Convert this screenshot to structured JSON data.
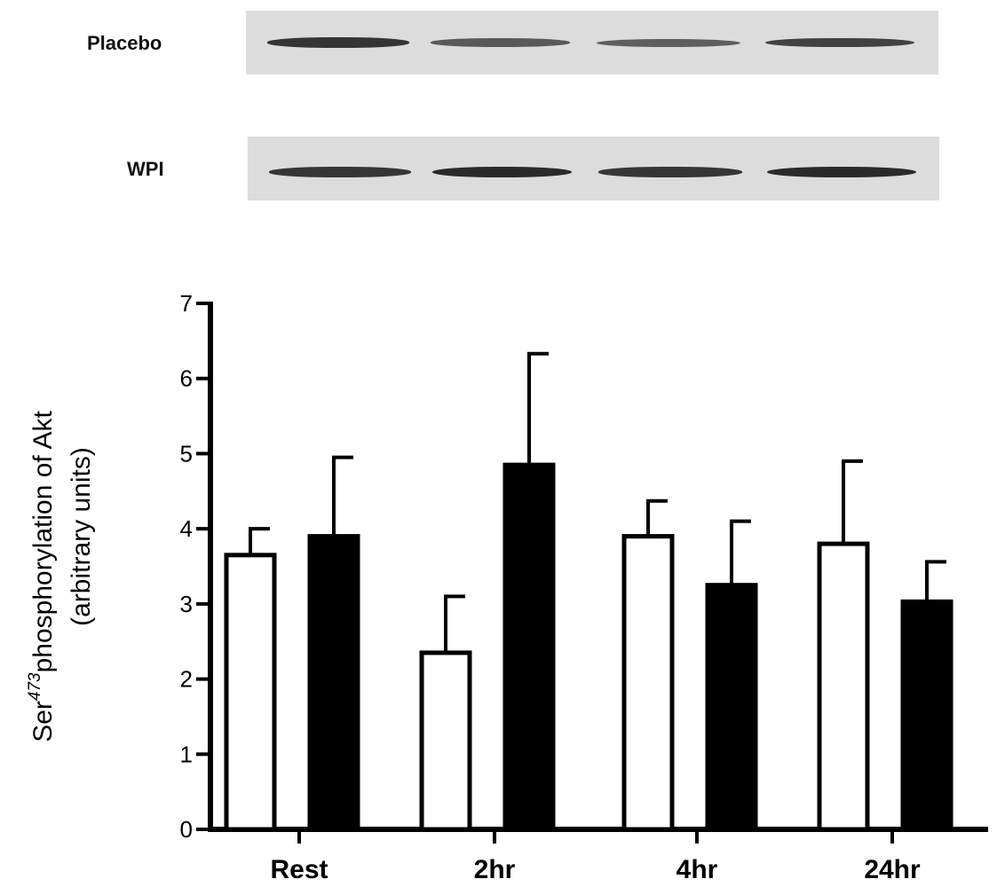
{
  "blot": {
    "rows": [
      {
        "label": "Placebo",
        "intensities": [
          0.85,
          0.55,
          0.5,
          0.75
        ]
      },
      {
        "label": "WPI",
        "intensities": [
          0.85,
          0.95,
          0.85,
          0.95
        ]
      }
    ]
  },
  "chart_data": {
    "type": "bar",
    "categories": [
      "Rest",
      "2hr",
      "4hr",
      "24hr"
    ],
    "series": [
      {
        "fill": "#ffffff",
        "values": [
          3.65,
          2.35,
          3.9,
          3.8
        ],
        "errors": [
          0.35,
          0.75,
          0.47,
          1.1
        ]
      },
      {
        "fill": "#000000",
        "values": [
          3.9,
          4.85,
          3.25,
          3.03
        ],
        "errors": [
          1.05,
          1.48,
          0.85,
          0.53
        ]
      }
    ],
    "ylabel_parts": {
      "prefix": "Ser",
      "superscript": "473",
      "main": "phosphorylation of Akt",
      "line2": "(arbitrary units)"
    },
    "ylim": [
      0,
      7
    ],
    "yticks": [
      "0",
      "1",
      "2",
      "3",
      "4",
      "5",
      "6",
      "7"
    ],
    "grid": false,
    "legend": "none"
  }
}
